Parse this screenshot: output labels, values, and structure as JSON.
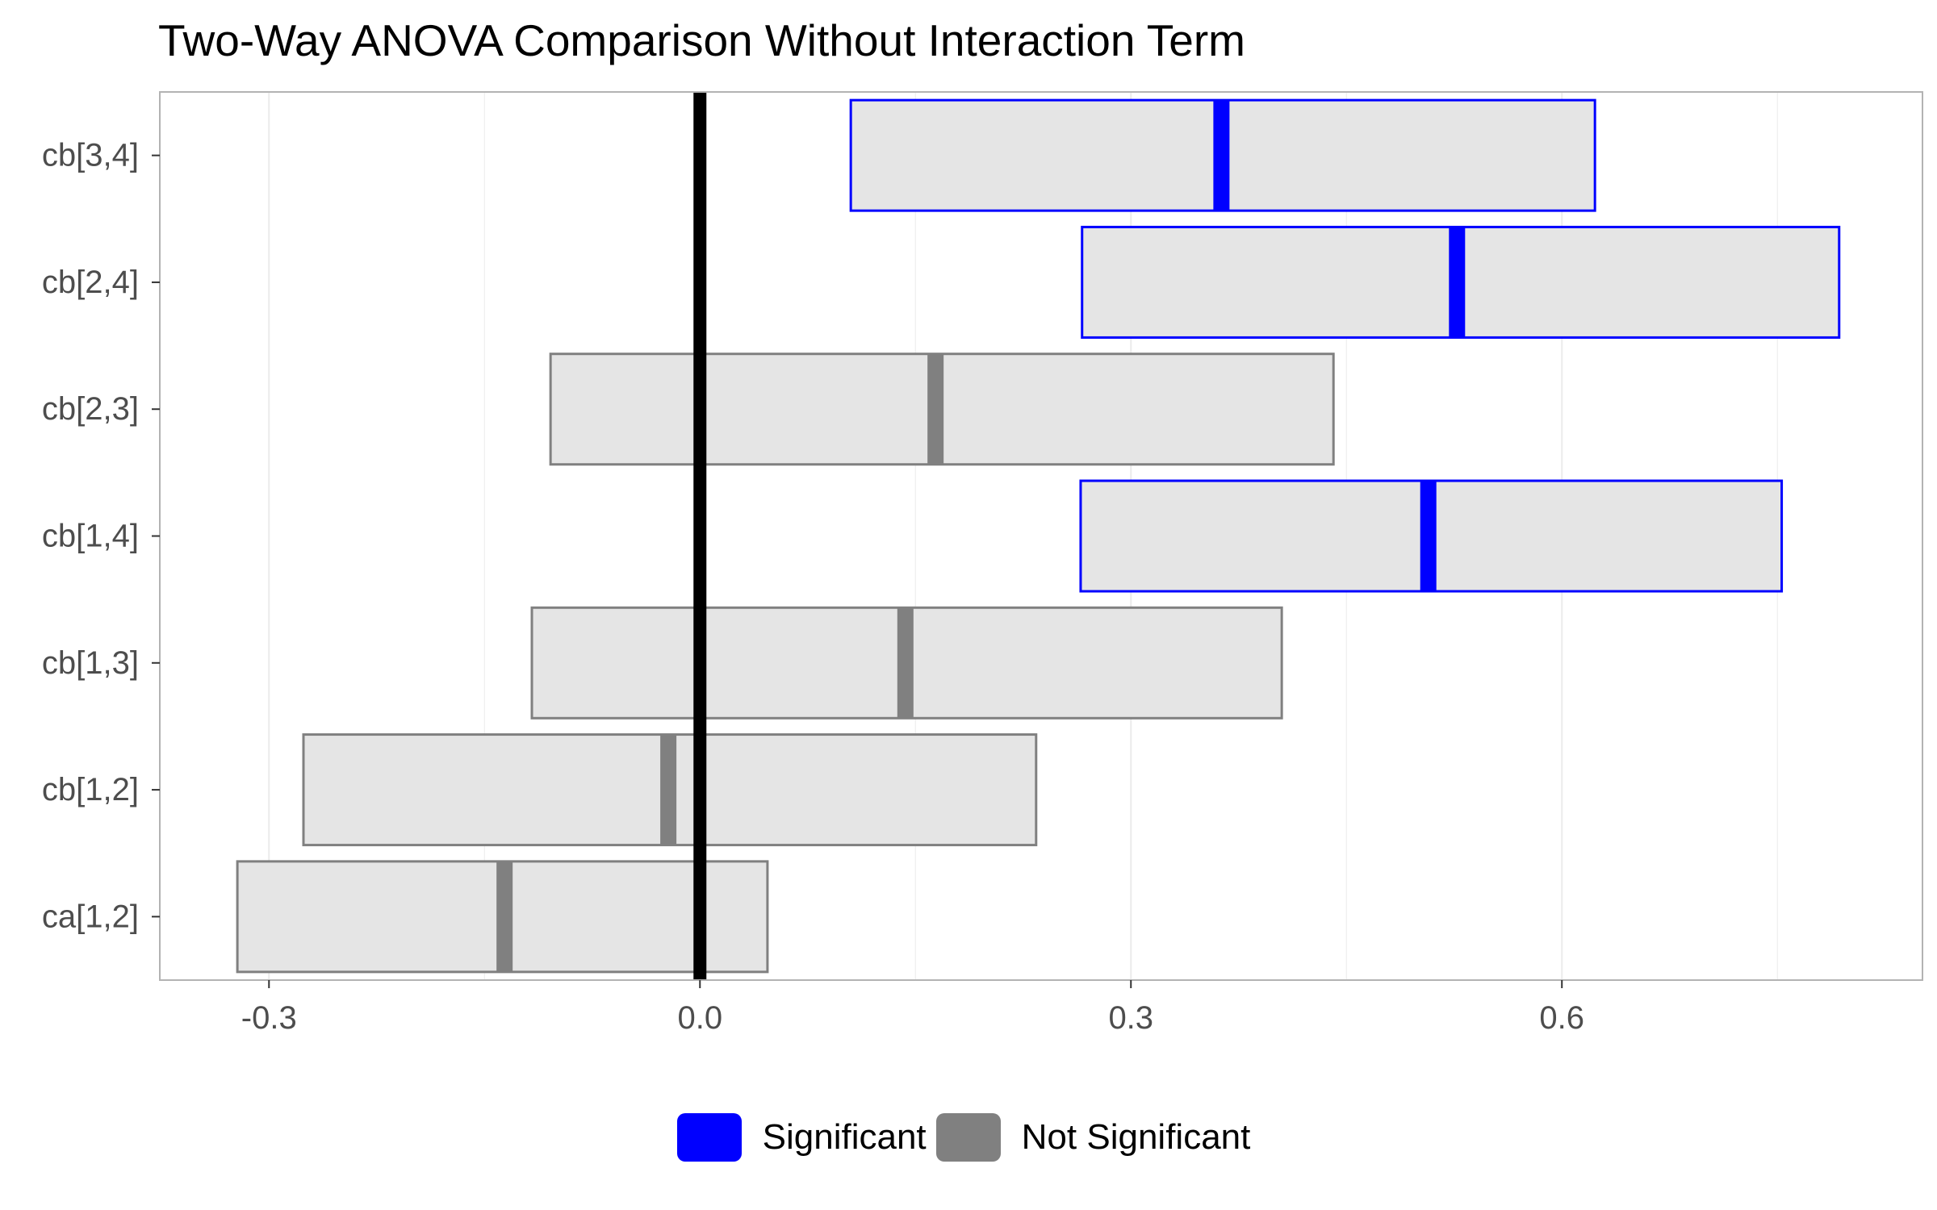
{
  "chart_data": {
    "type": "interval",
    "title": "Two-Way ANOVA Comparison Without Interaction Term",
    "xlabel": "",
    "ylabel": "",
    "xlim": [
      -0.376,
      0.851
    ],
    "xticks": [
      -0.3,
      0.0,
      0.3,
      0.6
    ],
    "xtick_labels": [
      "-0.3",
      "0.0",
      "0.3",
      "0.6"
    ],
    "reference_line": 0.0,
    "grid": true,
    "legend_position": "bottom",
    "legend": [
      {
        "label": "Significant",
        "color": "#0000ff"
      },
      {
        "label": "Not Significant",
        "color": "#808080"
      }
    ],
    "categories": [
      "cb[3,4]",
      "cb[2,4]",
      "cb[2,3]",
      "cb[1,4]",
      "cb[1,3]",
      "cb[1,2]",
      "ca[1,2]"
    ],
    "intervals": [
      {
        "label": "cb[3,4]",
        "lower": 0.105,
        "estimate": 0.363,
        "upper": 0.623,
        "status": "Significant"
      },
      {
        "label": "cb[2,4]",
        "lower": 0.266,
        "estimate": 0.527,
        "upper": 0.793,
        "status": "Significant"
      },
      {
        "label": "cb[2,3]",
        "lower": -0.104,
        "estimate": 0.164,
        "upper": 0.441,
        "status": "Not Significant"
      },
      {
        "label": "cb[1,4]",
        "lower": 0.265,
        "estimate": 0.507,
        "upper": 0.753,
        "status": "Significant"
      },
      {
        "label": "cb[1,3]",
        "lower": -0.117,
        "estimate": 0.143,
        "upper": 0.405,
        "status": "Not Significant"
      },
      {
        "label": "cb[1,2]",
        "lower": -0.276,
        "estimate": -0.022,
        "upper": 0.234,
        "status": "Not Significant"
      },
      {
        "label": "ca[1,2]",
        "lower": -0.322,
        "estimate": -0.136,
        "upper": 0.047,
        "status": "Not Significant"
      }
    ],
    "colors": {
      "box_fill": "#e5e5e5",
      "significant": "#0000ff",
      "not_significant": "#808080",
      "reference_line": "#000000",
      "grid": "#ebebeb",
      "panel_border": "#b3b3b3",
      "tick_label": "#4d4d4d"
    }
  }
}
